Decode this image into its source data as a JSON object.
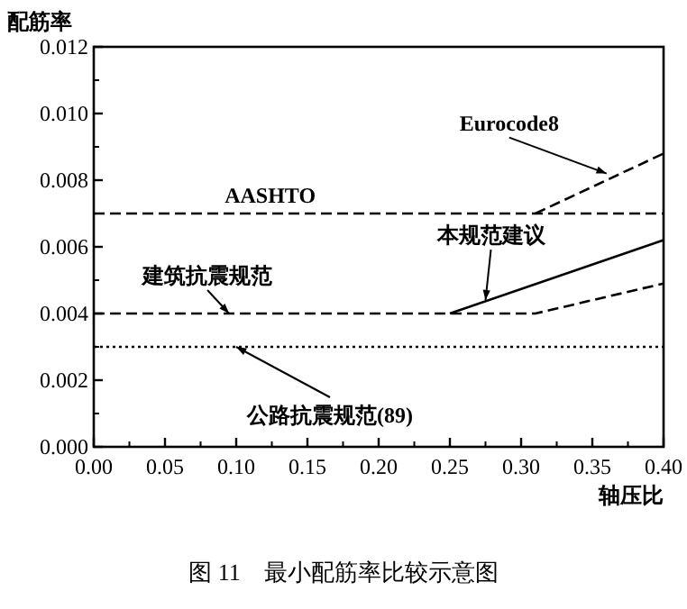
{
  "chart_data": {
    "type": "line",
    "xlabel": "轴压比",
    "ylabel": "配筋率",
    "series": [
      {
        "color": "#000000",
        "line_style": "dashed",
        "x": [
          0,
          0.4
        ],
        "values": [
          0.007,
          0.007
        ]
      },
      {
        "color": "#000000",
        "line_style": "dashed",
        "x": [
          0.31,
          0.4
        ],
        "values": [
          0.007,
          0.0088
        ]
      },
      {
        "color": "#000000",
        "line_style": "dashed",
        "x": [
          0,
          0.31,
          0.4
        ],
        "values": [
          0.004,
          0.004,
          0.0049
        ]
      },
      {
        "color": "#000000",
        "line_style": "solid",
        "x": [
          0.25,
          0.4
        ],
        "values": [
          0.004,
          0.0062
        ]
      },
      {
        "color": "#000000",
        "line_style": "dotted",
        "x": [
          0,
          0.4
        ],
        "values": [
          0.003,
          0.003
        ]
      }
    ],
    "xlim": [
      0,
      0.4
    ],
    "ylim": [
      0,
      0.012
    ],
    "xticks": [
      {
        "value": 0,
        "label": "0.00"
      },
      {
        "value": 0.05,
        "label": "0.05"
      },
      {
        "value": 0.1,
        "label": "0.10"
      },
      {
        "value": 0.15,
        "label": "0.15"
      },
      {
        "value": 0.2,
        "label": "0.20"
      },
      {
        "value": 0.25,
        "label": "0.25"
      },
      {
        "value": 0.3,
        "label": "0.30"
      },
      {
        "value": 0.35,
        "label": "0.35"
      },
      {
        "value": 0.4,
        "label": "0.40"
      }
    ],
    "yticks": [
      {
        "value": 0,
        "label": "0.000"
      },
      {
        "value": 0.002,
        "label": "0.002"
      },
      {
        "value": 0.004,
        "label": "0.004"
      },
      {
        "value": 0.006,
        "label": "0.006"
      },
      {
        "value": 0.008,
        "label": "0.008"
      },
      {
        "value": 0.01,
        "label": "0.010"
      },
      {
        "value": 0.012,
        "label": "0.012"
      }
    ],
    "grid": false,
    "marker": "none",
    "annotations": [
      {
        "text": "AASHTO",
        "x": 0.12,
        "y": 0.007
      },
      {
        "text": "建筑抗震规范",
        "x": 0.095,
        "y": 0.004
      },
      {
        "text": "公路抗震规范(89)",
        "x": 0.1,
        "y": 0.003
      },
      {
        "text": "本规范建议",
        "x": 0.275,
        "y": 0.0044
      },
      {
        "text": "Eurocode8",
        "x": 0.36,
        "y": 0.0082
      },
      "图 11　最小配筋率比较示意图"
    ]
  }
}
